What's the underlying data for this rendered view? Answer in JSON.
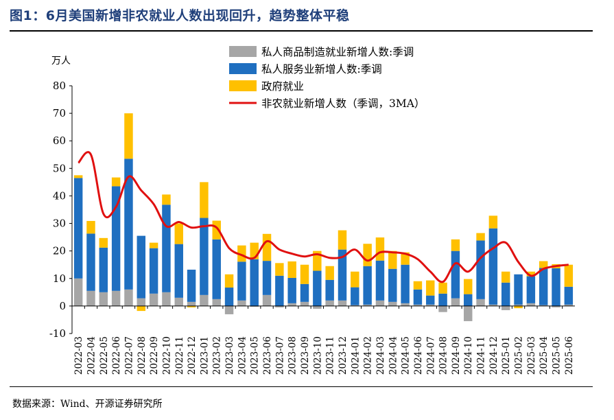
{
  "title": "图1：6月美国新增非农就业人数出现回升，趋势整体平稳",
  "source": "数据来源：Wind、开源证券研究所",
  "chart_data": {
    "type": "bar",
    "stacked": true,
    "unit_label": "万人",
    "ylim": [
      -10,
      80
    ],
    "yticks": [
      -10,
      0,
      10,
      20,
      30,
      40,
      50,
      60,
      70,
      80
    ],
    "categories": [
      "2022-03",
      "2022-04",
      "2022-05",
      "2022-06",
      "2022-07",
      "2022-08",
      "2022-09",
      "2022-10",
      "2022-11",
      "2022-12",
      "2023-01",
      "2023-02",
      "2023-03",
      "2023-04",
      "2023-05",
      "2023-06",
      "2023-07",
      "2023-08",
      "2023-09",
      "2023-10",
      "2023-11",
      "2023-12",
      "2024-01",
      "2024-02",
      "2024-03",
      "2024-04",
      "2024-05",
      "2024-06",
      "2024-07",
      "2024-08",
      "2024-09",
      "2024-10",
      "2024-11",
      "2024-12",
      "2025-01",
      "2025-02",
      "2025-03",
      "2025-04",
      "2025-05",
      "2025-06"
    ],
    "series": [
      {
        "name": "私人商品制造就业新增人数:季调",
        "color": "#a6a6a6",
        "values": [
          10,
          5.5,
          5,
          5.5,
          6,
          2.8,
          4.5,
          5,
          3,
          1.5,
          4,
          2.5,
          -3,
          2,
          -0.3,
          4,
          -0.5,
          1,
          1.5,
          -1,
          2,
          2,
          0.3,
          0.5,
          2,
          1.5,
          1,
          0.5,
          0.5,
          -2.2,
          2.8,
          -5.5,
          2.5,
          0.5,
          -1.5,
          0.5,
          1,
          0.3,
          -0.5,
          0.5
        ]
      },
      {
        "name": "私人服务业新增人数:季调",
        "color": "#1f6fc0",
        "values": [
          36.5,
          20.8,
          16.2,
          38,
          47.5,
          22.7,
          16.5,
          31.8,
          19.5,
          11.7,
          28,
          21.7,
          6.7,
          14.1,
          17,
          12.4,
          11,
          9.2,
          6.5,
          12.8,
          7.5,
          18.5,
          6.5,
          14,
          14.5,
          12,
          14,
          5.5,
          3.3,
          4.5,
          17.2,
          4.3,
          21.3,
          27.7,
          8.5,
          11,
          9.8,
          13.5,
          13.7,
          6.5
        ]
      },
      {
        "name": "政府就业",
        "color": "#ffc000",
        "values": [
          1,
          4.6,
          3.5,
          3.2,
          16.5,
          -1.8,
          2,
          3.7,
          7.5,
          -0.5,
          13,
          6.8,
          4.8,
          5.9,
          6,
          9.8,
          4.6,
          6,
          7,
          7.2,
          5,
          7,
          5.7,
          8.1,
          8.4,
          6.5,
          4.5,
          3,
          5.5,
          4,
          4.2,
          5.5,
          2.7,
          4.6,
          4,
          -0.8,
          1.7,
          2.5,
          1.5,
          8
        ]
      },
      {
        "name": "非农就业新增人数（季调，3MA）",
        "color": "#e01010",
        "type": "line",
        "values": [
          52,
          55,
          33.5,
          36,
          47,
          42,
          37,
          29,
          30.5,
          28.5,
          29,
          28.5,
          21,
          18.5,
          17.5,
          23.5,
          20.5,
          19,
          18,
          18.8,
          17.5,
          17.8,
          20.5,
          16.5,
          19.5,
          19.5,
          19,
          17,
          12.5,
          8.8,
          15.5,
          12.5,
          17.5,
          21,
          23,
          16,
          11,
          13.5,
          14.5,
          15
        ]
      }
    ]
  }
}
